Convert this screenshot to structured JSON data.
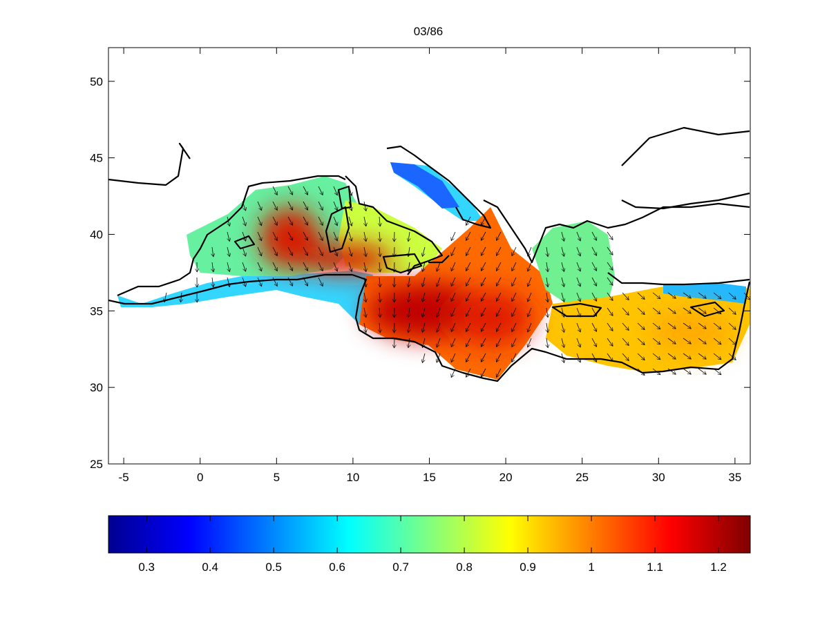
{
  "title": "03/86",
  "map": {
    "x_ticks": [
      "-5",
      "0",
      "5",
      "10",
      "15",
      "20",
      "25",
      "30",
      "35"
    ],
    "y_ticks": [
      "25",
      "30",
      "35",
      "40",
      "45",
      "50"
    ],
    "xlim": [
      -6,
      36
    ],
    "ylim": [
      25,
      52.2
    ],
    "color_scale": "jet",
    "vectors": "wind direction arrows over sea"
  },
  "colorbar": {
    "ticks": [
      "0.3",
      "0.4",
      "0.5",
      "0.6",
      "0.7",
      "0.8",
      "0.9",
      "1",
      "1.1",
      "1.2"
    ],
    "range": [
      0.24,
      1.25
    ],
    "colors": [
      "#00008f",
      "#0000ff",
      "#0080ff",
      "#00ffff",
      "#80ff80",
      "#ffff00",
      "#ff8000",
      "#ff0000",
      "#800000"
    ]
  },
  "chart_data": {
    "type": "heatmap",
    "title": "03/86",
    "xlabel": "",
    "ylabel": "",
    "xlim": [
      -6,
      36
    ],
    "ylim": [
      25,
      52.2
    ],
    "colorbar_range": [
      0.24,
      1.25
    ],
    "hotspots": [
      {
        "lon": 6,
        "lat": 39.5,
        "value": 1.15
      },
      {
        "lon": 11,
        "lat": 38,
        "value": 1.2
      },
      {
        "lon": 14.5,
        "lat": 35,
        "value": 1.25
      },
      {
        "lon": 18,
        "lat": 35,
        "value": 1.15
      },
      {
        "lon": 21.5,
        "lat": 35,
        "value": 1.0
      }
    ]
  }
}
